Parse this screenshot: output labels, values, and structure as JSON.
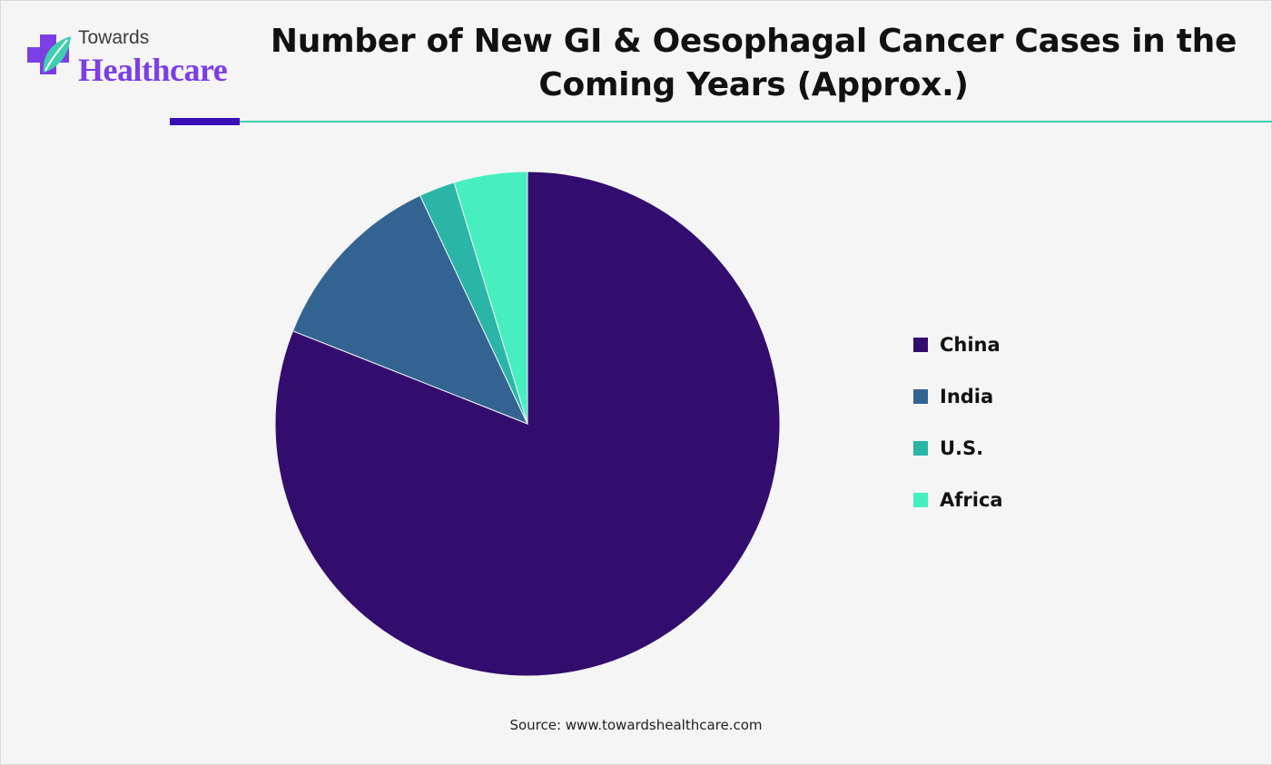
{
  "brand": {
    "top": "Towards",
    "bottom": "Healthcare",
    "icon": "medical-cross-leaf-icon",
    "colors": {
      "purple": "#7b3fe4",
      "teal": "#3fcfae"
    }
  },
  "chart_data": {
    "type": "pie",
    "title": "Number of New GI & Oesophagal Cancer Cases in the Coming Years (Approx.)",
    "categories": [
      "China",
      "India",
      "U.S.",
      "Africa"
    ],
    "values": [
      81,
      12,
      2.3,
      4.7
    ],
    "colors": [
      "#330d6e",
      "#336491",
      "#2ab5a7",
      "#47efc0"
    ],
    "start_angle": "top",
    "direction": "clockwise",
    "legend": "right"
  },
  "source": "Source: www.towardshealthcare.com"
}
